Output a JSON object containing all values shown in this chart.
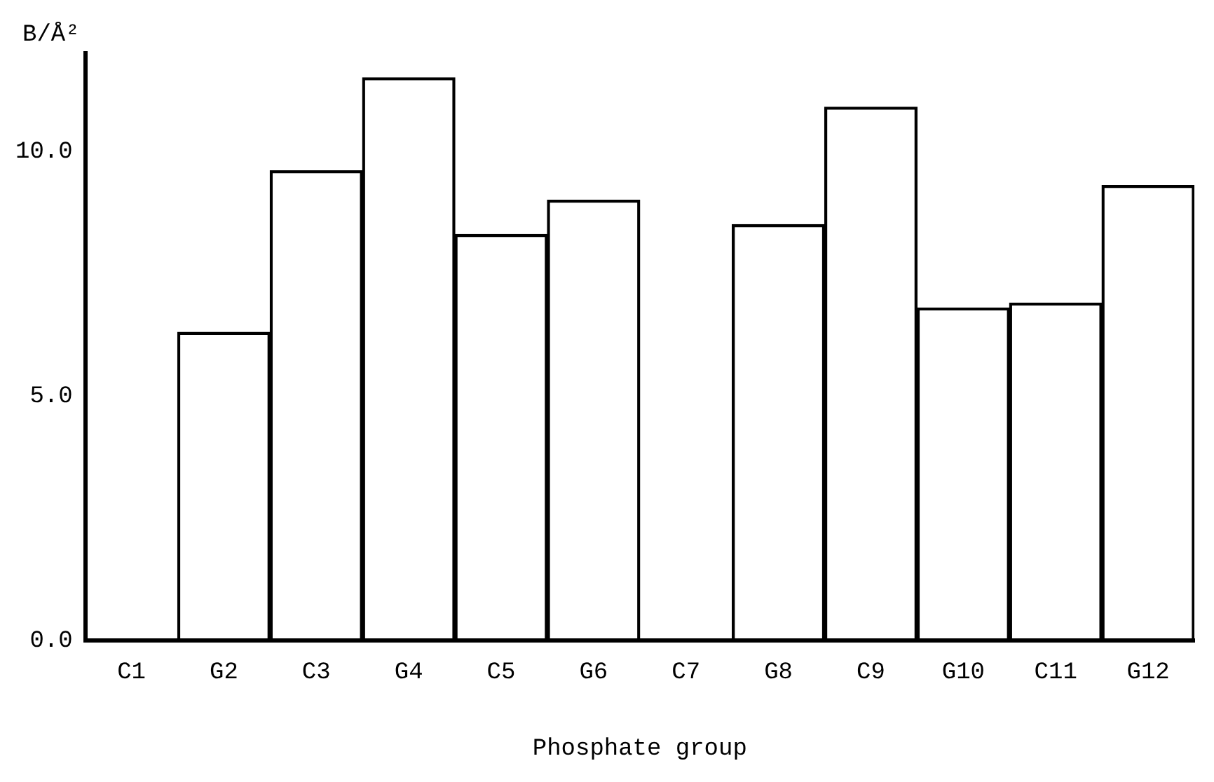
{
  "chart_data": {
    "type": "bar",
    "xlabel": "Phosphate group",
    "ylabel": "B/Å²",
    "categories": [
      "C1",
      "G2",
      "C3",
      "G4",
      "C5",
      "G6",
      "C7",
      "G8",
      "C9",
      "G10",
      "C11",
      "G12"
    ],
    "values": [
      null,
      6.3,
      9.6,
      11.5,
      8.3,
      9.0,
      null,
      8.5,
      10.9,
      6.8,
      6.9,
      9.3
    ],
    "color": "#000000",
    "ylim": [
      0,
      12
    ],
    "yticks": [
      {
        "value": 0,
        "label": "0.0"
      },
      {
        "value": 5,
        "label": "5.0"
      },
      {
        "value": 10,
        "label": "10.0"
      }
    ],
    "grid": false,
    "legend": false
  }
}
